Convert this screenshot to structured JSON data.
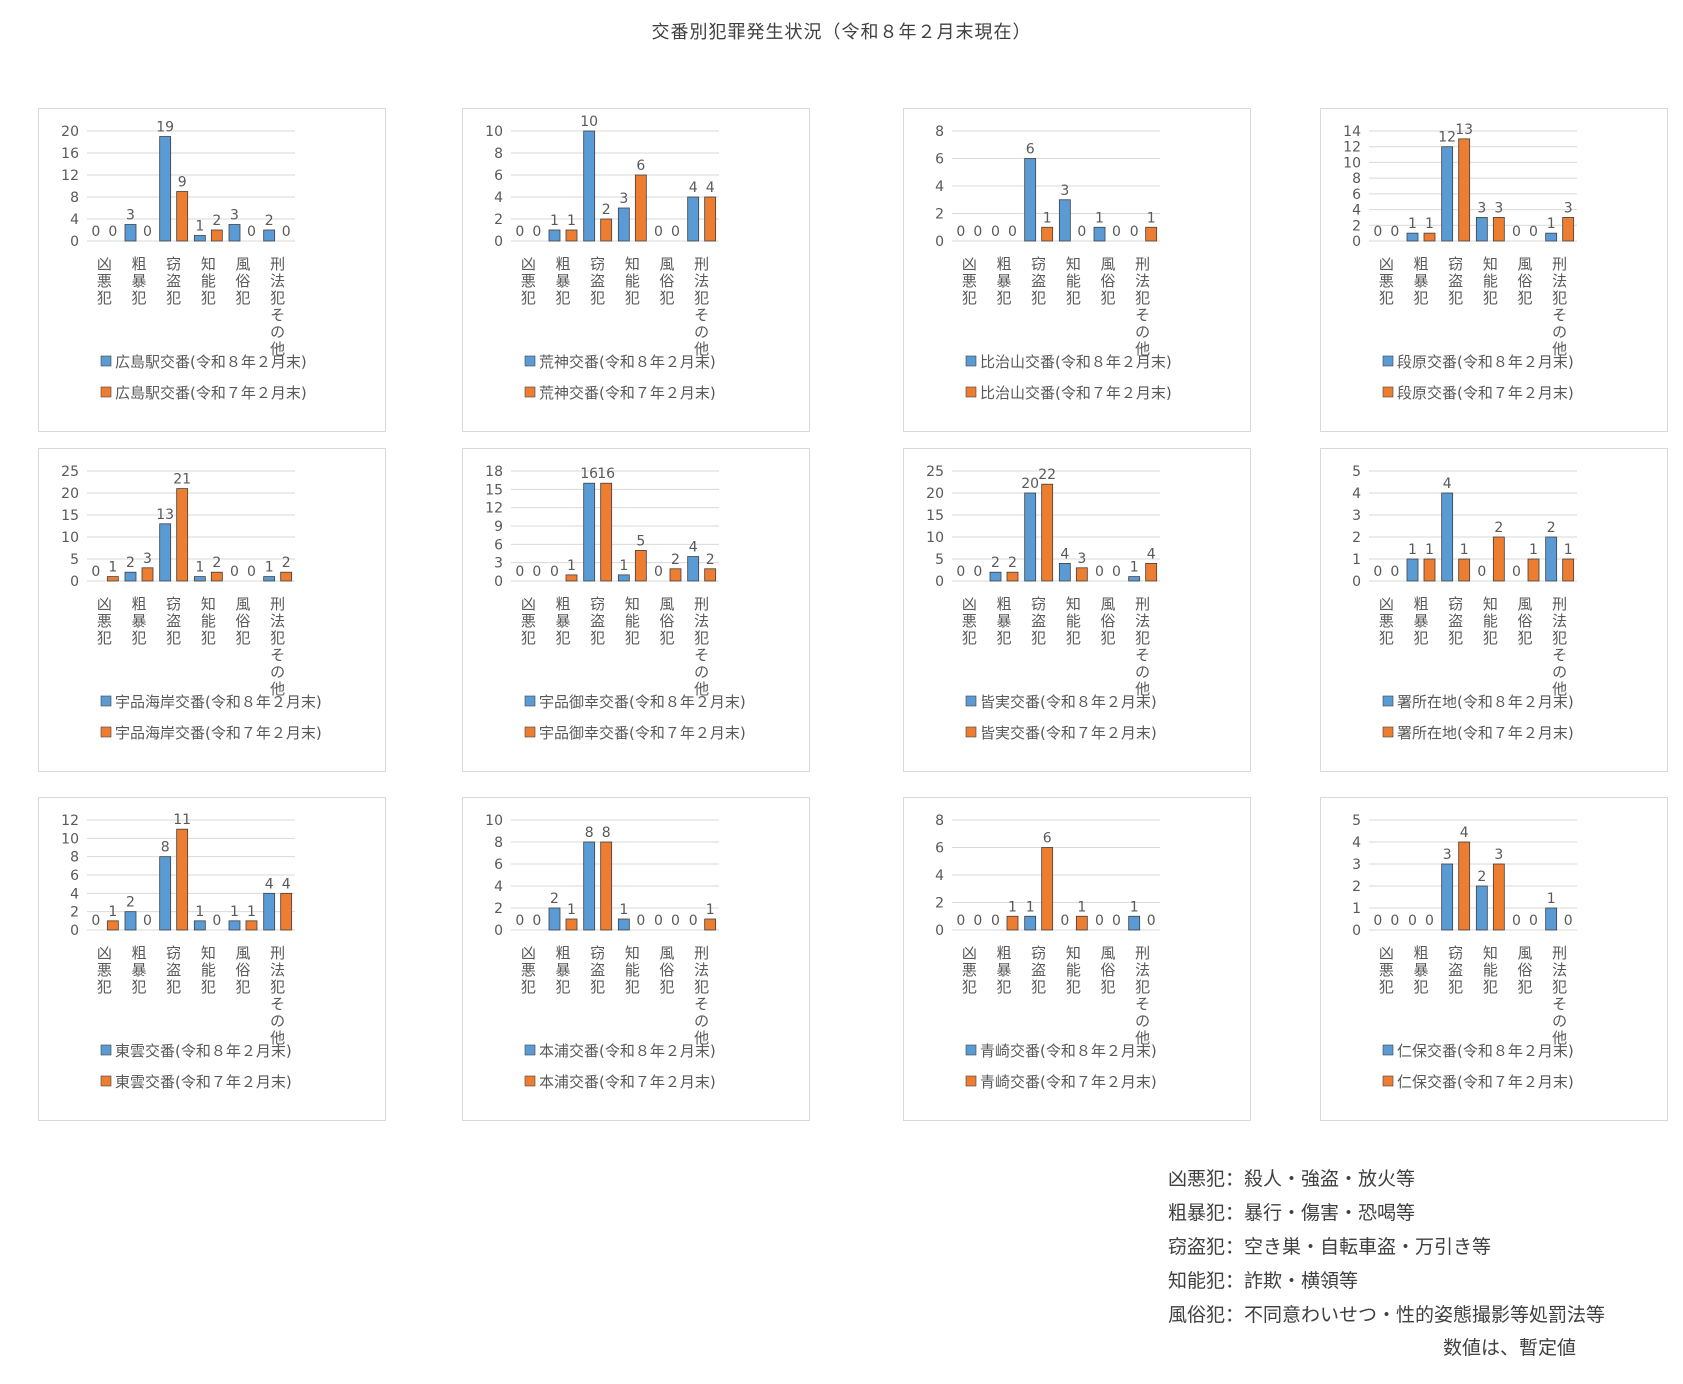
{
  "title": "交番別犯罪発生状況（令和８年２月末現在）",
  "colors": {
    "current": "#5b9bd5",
    "previous": "#ed7d31",
    "grid": "#d9d9d9",
    "text": "#595959",
    "bar_edge": "#404040"
  },
  "chart_data": [
    {
      "type": "bar",
      "name": "広島駅交番",
      "categories": [
        "凶悪犯",
        "粗暴犯",
        "窃盗犯",
        "知能犯",
        "風俗犯",
        "刑法犯その他"
      ],
      "series": [
        {
          "name": "広島駅交番(令和８年２月末)",
          "values": [
            0,
            3,
            19,
            1,
            3,
            2
          ]
        },
        {
          "name": "広島駅交番(令和７年２月末)",
          "values": [
            0,
            0,
            9,
            2,
            0,
            0
          ]
        }
      ],
      "yticks": [
        0,
        4,
        8,
        12,
        16,
        20
      ],
      "ylim": [
        0,
        20
      ]
    },
    {
      "type": "bar",
      "name": "荒神交番",
      "categories": [
        "凶悪犯",
        "粗暴犯",
        "窃盗犯",
        "知能犯",
        "風俗犯",
        "刑法犯その他"
      ],
      "series": [
        {
          "name": "荒神交番(令和８年２月末)",
          "values": [
            0,
            1,
            10,
            3,
            0,
            4
          ]
        },
        {
          "name": "荒神交番(令和７年２月末)",
          "values": [
            0,
            1,
            2,
            6,
            0,
            4
          ]
        }
      ],
      "yticks": [
        0,
        2,
        4,
        6,
        8,
        10
      ],
      "ylim": [
        0,
        10
      ]
    },
    {
      "type": "bar",
      "name": "比治山交番",
      "categories": [
        "凶悪犯",
        "粗暴犯",
        "窃盗犯",
        "知能犯",
        "風俗犯",
        "刑法犯その他"
      ],
      "series": [
        {
          "name": "比治山交番(令和８年２月末)",
          "values": [
            0,
            0,
            6,
            3,
            1,
            0
          ]
        },
        {
          "name": "比治山交番(令和７年２月末)",
          "values": [
            0,
            0,
            1,
            0,
            0,
            1
          ]
        }
      ],
      "yticks": [
        0,
        2,
        4,
        6,
        8
      ],
      "ylim": [
        0,
        8
      ]
    },
    {
      "type": "bar",
      "name": "段原交番",
      "categories": [
        "凶悪犯",
        "粗暴犯",
        "窃盗犯",
        "知能犯",
        "風俗犯",
        "刑法犯その他"
      ],
      "series": [
        {
          "name": "段原交番(令和８年２月末)",
          "values": [
            0,
            1,
            12,
            3,
            0,
            1
          ]
        },
        {
          "name": "段原交番(令和７年２月末)",
          "values": [
            0,
            1,
            13,
            3,
            0,
            3
          ]
        }
      ],
      "yticks": [
        0,
        2,
        4,
        6,
        8,
        10,
        12,
        14
      ],
      "ylim": [
        0,
        14
      ]
    },
    {
      "type": "bar",
      "name": "宇品海岸交番",
      "categories": [
        "凶悪犯",
        "粗暴犯",
        "窃盗犯",
        "知能犯",
        "風俗犯",
        "刑法犯その他"
      ],
      "series": [
        {
          "name": "宇品海岸交番(令和８年２月末)",
          "values": [
            0,
            2,
            13,
            1,
            0,
            1
          ]
        },
        {
          "name": "宇品海岸交番(令和７年２月末)",
          "values": [
            1,
            3,
            21,
            2,
            0,
            2
          ]
        }
      ],
      "yticks": [
        0,
        5,
        10,
        15,
        20,
        25
      ],
      "ylim": [
        0,
        25
      ]
    },
    {
      "type": "bar",
      "name": "宇品御幸交番",
      "categories": [
        "凶悪犯",
        "粗暴犯",
        "窃盗犯",
        "知能犯",
        "風俗犯",
        "刑法犯その他"
      ],
      "series": [
        {
          "name": "宇品御幸交番(令和８年２月末)",
          "values": [
            0,
            0,
            16,
            1,
            0,
            4
          ]
        },
        {
          "name": "宇品御幸交番(令和７年２月末)",
          "values": [
            0,
            1,
            16,
            5,
            2,
            2
          ]
        }
      ],
      "yticks": [
        0,
        3,
        6,
        9,
        12,
        15,
        18
      ],
      "ylim": [
        0,
        18
      ]
    },
    {
      "type": "bar",
      "name": "皆実交番",
      "categories": [
        "凶悪犯",
        "粗暴犯",
        "窃盗犯",
        "知能犯",
        "風俗犯",
        "刑法犯その他"
      ],
      "series": [
        {
          "name": "皆実交番(令和８年２月末)",
          "values": [
            0,
            2,
            20,
            4,
            0,
            1
          ]
        },
        {
          "name": "皆実交番(令和７年２月末)",
          "values": [
            0,
            2,
            22,
            3,
            0,
            4
          ]
        }
      ],
      "yticks": [
        0,
        5,
        10,
        15,
        20,
        25
      ],
      "ylim": [
        0,
        25
      ]
    },
    {
      "type": "bar",
      "name": "署所在地",
      "categories": [
        "凶悪犯",
        "粗暴犯",
        "窃盗犯",
        "知能犯",
        "風俗犯",
        "刑法犯その他"
      ],
      "series": [
        {
          "name": "署所在地(令和８年２月末)",
          "values": [
            0,
            1,
            4,
            0,
            0,
            2
          ]
        },
        {
          "name": "署所在地(令和７年２月末)",
          "values": [
            0,
            1,
            1,
            2,
            1,
            1
          ]
        }
      ],
      "yticks": [
        0,
        1,
        2,
        3,
        4,
        5
      ],
      "ylim": [
        0,
        5
      ]
    },
    {
      "type": "bar",
      "name": "東雲交番",
      "categories": [
        "凶悪犯",
        "粗暴犯",
        "窃盗犯",
        "知能犯",
        "風俗犯",
        "刑法犯その他"
      ],
      "series": [
        {
          "name": "東雲交番(令和８年２月末)",
          "values": [
            0,
            2,
            8,
            1,
            1,
            4
          ]
        },
        {
          "name": "東雲交番(令和７年２月末)",
          "values": [
            1,
            0,
            11,
            0,
            1,
            4
          ]
        }
      ],
      "yticks": [
        0,
        2,
        4,
        6,
        8,
        10,
        12
      ],
      "ylim": [
        0,
        12
      ]
    },
    {
      "type": "bar",
      "name": "本浦交番",
      "categories": [
        "凶悪犯",
        "粗暴犯",
        "窃盗犯",
        "知能犯",
        "風俗犯",
        "刑法犯その他"
      ],
      "series": [
        {
          "name": "本浦交番(令和８年２月末)",
          "values": [
            0,
            2,
            8,
            1,
            0,
            0
          ]
        },
        {
          "name": "本浦交番(令和７年２月末)",
          "values": [
            0,
            1,
            8,
            0,
            0,
            1
          ]
        }
      ],
      "yticks": [
        0,
        2,
        4,
        6,
        8,
        10
      ],
      "ylim": [
        0,
        10
      ]
    },
    {
      "type": "bar",
      "name": "青崎交番",
      "categories": [
        "凶悪犯",
        "粗暴犯",
        "窃盗犯",
        "知能犯",
        "風俗犯",
        "刑法犯その他"
      ],
      "series": [
        {
          "name": "青崎交番(令和８年２月末)",
          "values": [
            0,
            0,
            1,
            0,
            0,
            1
          ]
        },
        {
          "name": "青崎交番(令和７年２月末)",
          "values": [
            0,
            1,
            6,
            1,
            0,
            0
          ]
        }
      ],
      "yticks": [
        0,
        2,
        4,
        6,
        8
      ],
      "ylim": [
        0,
        8
      ]
    },
    {
      "type": "bar",
      "name": "仁保交番",
      "categories": [
        "凶悪犯",
        "粗暴犯",
        "窃盗犯",
        "知能犯",
        "風俗犯",
        "刑法犯その他"
      ],
      "series": [
        {
          "name": "仁保交番(令和８年２月末)",
          "values": [
            0,
            0,
            3,
            2,
            0,
            1
          ]
        },
        {
          "name": "仁保交番(令和７年２月末)",
          "values": [
            0,
            0,
            4,
            3,
            0,
            0
          ]
        }
      ],
      "yticks": [
        0,
        1,
        2,
        3,
        4,
        5
      ],
      "ylim": [
        0,
        5
      ]
    }
  ],
  "notes": [
    "凶悪犯：殺人・強盗・放火等",
    "粗暴犯：暴行・傷害・恐喝等",
    "窃盗犯：空き巣・自転車盗・万引き等",
    "知能犯：詐欺・横領等",
    "風俗犯：不同意わいせつ・性的姿態撮影等処罰法等"
  ],
  "provisional_note": "数値は、暫定値"
}
